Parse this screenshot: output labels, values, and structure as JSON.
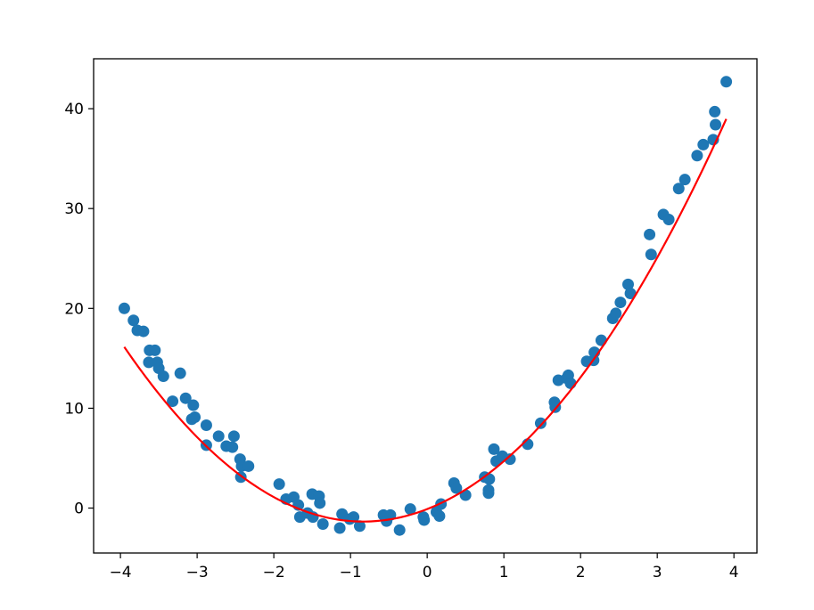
{
  "chart_data": {
    "type": "scatter",
    "title": "",
    "xlabel": "",
    "ylabel": "",
    "xlim": [
      -4.35,
      4.3
    ],
    "ylim": [
      -4.5,
      45
    ],
    "grid": false,
    "x_ticks": [
      -4,
      -3,
      -2,
      -1,
      0,
      1,
      2,
      3,
      4
    ],
    "x_tick_labels": [
      "−4",
      "−3",
      "−2",
      "−1",
      "0",
      "1",
      "2",
      "3",
      "4"
    ],
    "y_ticks": [
      0,
      10,
      20,
      30,
      40
    ],
    "y_tick_labels": [
      "0",
      "10",
      "20",
      "30",
      "40"
    ],
    "series": [
      {
        "kind": "scatter",
        "color": "#1f77b4",
        "points": [
          [
            -3.95,
            20.0
          ],
          [
            -3.83,
            18.8
          ],
          [
            -3.78,
            17.8
          ],
          [
            -3.7,
            17.7
          ],
          [
            -3.63,
            14.6
          ],
          [
            -3.62,
            15.8
          ],
          [
            -3.55,
            15.8
          ],
          [
            -3.52,
            14.6
          ],
          [
            -3.5,
            14.0
          ],
          [
            -3.44,
            13.2
          ],
          [
            -3.32,
            10.7
          ],
          [
            -3.22,
            13.5
          ],
          [
            -3.15,
            11.0
          ],
          [
            -3.07,
            8.9
          ],
          [
            -3.05,
            10.3
          ],
          [
            -3.03,
            9.1
          ],
          [
            -2.88,
            8.3
          ],
          [
            -2.88,
            6.3
          ],
          [
            -2.72,
            7.2
          ],
          [
            -2.62,
            6.2
          ],
          [
            -2.54,
            6.1
          ],
          [
            -2.52,
            7.2
          ],
          [
            -2.44,
            4.9
          ],
          [
            -2.42,
            4.2
          ],
          [
            -2.43,
            3.1
          ],
          [
            -2.33,
            4.2
          ],
          [
            -1.93,
            2.4
          ],
          [
            -1.84,
            0.9
          ],
          [
            -1.74,
            1.1
          ],
          [
            -1.68,
            0.3
          ],
          [
            -1.66,
            -0.9
          ],
          [
            -1.56,
            -0.5
          ],
          [
            -1.5,
            1.4
          ],
          [
            -1.49,
            -0.9
          ],
          [
            -1.41,
            1.2
          ],
          [
            -1.4,
            0.5
          ],
          [
            -1.36,
            -1.6
          ],
          [
            -1.14,
            -2.0
          ],
          [
            -1.11,
            -0.6
          ],
          [
            -1.01,
            -1.1
          ],
          [
            -0.96,
            -0.9
          ],
          [
            -0.88,
            -1.8
          ],
          [
            -0.57,
            -0.7
          ],
          [
            -0.53,
            -1.3
          ],
          [
            -0.48,
            -0.7
          ],
          [
            -0.36,
            -2.2
          ],
          [
            -0.22,
            -0.1
          ],
          [
            -0.05,
            -0.9
          ],
          [
            -0.04,
            -1.2
          ],
          [
            0.12,
            -0.4
          ],
          [
            0.16,
            -0.8
          ],
          [
            0.18,
            0.4
          ],
          [
            0.35,
            2.5
          ],
          [
            0.38,
            2.0
          ],
          [
            0.5,
            1.3
          ],
          [
            0.75,
            3.1
          ],
          [
            0.8,
            1.8
          ],
          [
            0.81,
            2.9
          ],
          [
            0.8,
            1.5
          ],
          [
            0.87,
            5.9
          ],
          [
            0.9,
            4.7
          ],
          [
            0.98,
            5.2
          ],
          [
            1.08,
            4.9
          ],
          [
            1.31,
            6.4
          ],
          [
            1.48,
            8.5
          ],
          [
            1.66,
            10.6
          ],
          [
            1.67,
            10.1
          ],
          [
            1.71,
            12.8
          ],
          [
            1.82,
            13.0
          ],
          [
            1.84,
            13.3
          ],
          [
            1.87,
            12.5
          ],
          [
            2.08,
            14.7
          ],
          [
            2.17,
            14.8
          ],
          [
            2.18,
            15.6
          ],
          [
            2.27,
            16.8
          ],
          [
            2.42,
            19.0
          ],
          [
            2.46,
            19.5
          ],
          [
            2.52,
            20.6
          ],
          [
            2.62,
            22.4
          ],
          [
            2.65,
            21.5
          ],
          [
            2.9,
            27.4
          ],
          [
            2.92,
            25.4
          ],
          [
            3.08,
            29.4
          ],
          [
            3.15,
            28.9
          ],
          [
            3.28,
            32.0
          ],
          [
            3.36,
            32.9
          ],
          [
            3.52,
            35.3
          ],
          [
            3.6,
            36.4
          ],
          [
            3.73,
            36.9
          ],
          [
            3.75,
            39.7
          ],
          [
            3.76,
            38.4
          ],
          [
            3.9,
            42.7
          ]
        ]
      },
      {
        "kind": "line",
        "color": "#ff0000",
        "x_range": [
          -3.95,
          3.9
        ],
        "model": "quadratic",
        "coefficients": [
          1.8,
          3.0,
          -0.1
        ]
      }
    ]
  }
}
